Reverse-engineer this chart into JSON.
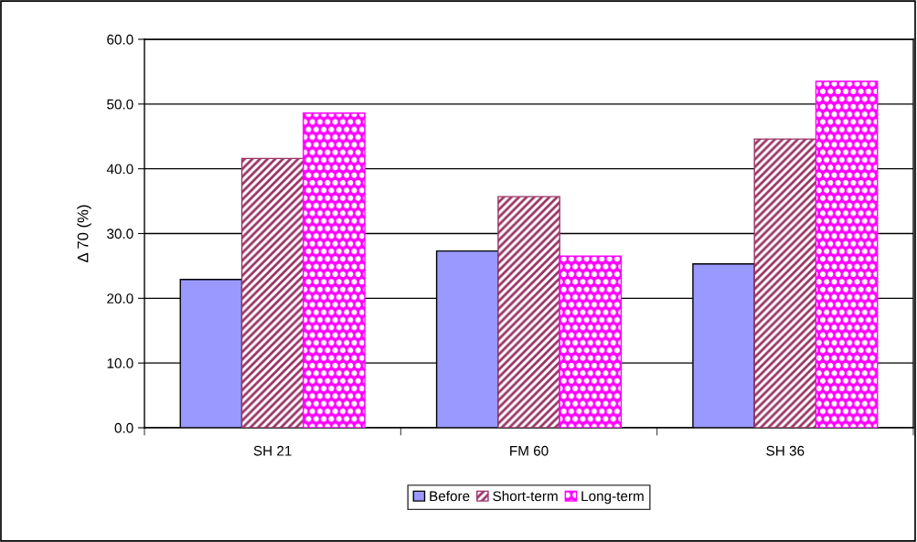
{
  "chart_data": {
    "type": "bar",
    "ylabel": "Δ 70 (%)",
    "categories": [
      "SH 21",
      "FM 60",
      "SH 36"
    ],
    "series": [
      {
        "name": "Before",
        "color": "#9999ff",
        "values": [
          22.9,
          27.3,
          25.3
        ]
      },
      {
        "name": "Short-term",
        "color": "#993366",
        "values": [
          41.6,
          35.7,
          44.6
        ]
      },
      {
        "name": "Long-term",
        "color": "#ff00ff",
        "values": [
          48.6,
          26.5,
          53.5
        ]
      }
    ],
    "ylim": [
      0,
      60
    ],
    "yticks": [
      {
        "value": 0,
        "label": "0.0"
      },
      {
        "value": 10,
        "label": "10.0"
      },
      {
        "value": 20,
        "label": "20.0"
      },
      {
        "value": 30,
        "label": "30.0"
      },
      {
        "value": 40,
        "label": "40.0"
      },
      {
        "value": 50,
        "label": "50.0"
      },
      {
        "value": 60,
        "label": "60.0"
      }
    ],
    "grid": "y",
    "legend": "bottom"
  }
}
